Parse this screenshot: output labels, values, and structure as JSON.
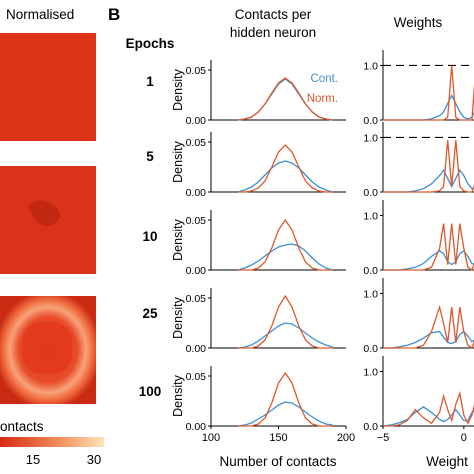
{
  "figure": {
    "panel_b_letter": "B",
    "left_header": "Normalised",
    "epochs_label": "Epochs",
    "mid_title_line1": "Contacts per",
    "mid_title_line2": "hidden neuron",
    "right_title": "Weights",
    "colorbar_label": "ontacts",
    "colorbar_ticks": [
      "15",
      "30"
    ],
    "colors": {
      "cont": "#3a8fd9",
      "norm": "#e0572a",
      "heatmap_low": "#d62a12",
      "heatmap_high": "#ffe3b8"
    }
  },
  "heatmaps": [
    {
      "epoch": "1",
      "description": "uniform"
    },
    {
      "epoch": "5",
      "description": "uniform"
    },
    {
      "epoch": "25",
      "description": "ring"
    }
  ],
  "chart_data": [
    {
      "type": "line",
      "panel": "contacts-per-hidden-neuron",
      "title": "Contacts per hidden neuron",
      "xlabel": "Number of contacts",
      "ylabel": "Density",
      "xlim": [
        100,
        200
      ],
      "xticks": [
        "100",
        "150",
        "200"
      ],
      "ylim": [
        0,
        0.06
      ],
      "yticks": [
        "0.00",
        "0.05"
      ],
      "legend": [
        "Cont.",
        "Norm."
      ],
      "legend_position": "top-right",
      "x": [
        120,
        125,
        130,
        135,
        140,
        145,
        150,
        155,
        160,
        165,
        170,
        175,
        180,
        185,
        190
      ],
      "rows": [
        {
          "epoch": "1",
          "series": [
            {
              "name": "Cont.",
              "values": [
                0.0,
                0.001,
                0.003,
                0.008,
                0.016,
                0.026,
                0.036,
                0.041,
                0.036,
                0.026,
                0.016,
                0.008,
                0.003,
                0.001,
                0.0
              ]
            },
            {
              "name": "Norm.",
              "values": [
                0.0,
                0.001,
                0.003,
                0.008,
                0.016,
                0.027,
                0.037,
                0.042,
                0.037,
                0.027,
                0.016,
                0.008,
                0.003,
                0.001,
                0.0
              ]
            }
          ]
        },
        {
          "epoch": "5",
          "series": [
            {
              "name": "Cont.",
              "values": [
                0.0,
                0.002,
                0.005,
                0.01,
                0.017,
                0.024,
                0.029,
                0.031,
                0.029,
                0.024,
                0.017,
                0.01,
                0.005,
                0.002,
                0.0
              ]
            },
            {
              "name": "Norm.",
              "values": [
                0.0,
                0.0,
                0.001,
                0.004,
                0.011,
                0.025,
                0.04,
                0.047,
                0.04,
                0.025,
                0.011,
                0.004,
                0.001,
                0.0,
                0.0
              ]
            }
          ]
        },
        {
          "epoch": "10",
          "series": [
            {
              "name": "Cont.",
              "values": [
                0.0,
                0.002,
                0.005,
                0.009,
                0.014,
                0.019,
                0.023,
                0.025,
                0.026,
                0.024,
                0.019,
                0.012,
                0.006,
                0.002,
                0.0
              ]
            },
            {
              "name": "Norm.",
              "values": [
                0.0,
                0.0,
                0.0,
                0.002,
                0.008,
                0.022,
                0.04,
                0.05,
                0.04,
                0.022,
                0.008,
                0.002,
                0.0,
                0.0,
                0.0
              ]
            }
          ]
        },
        {
          "epoch": "25",
          "series": [
            {
              "name": "Cont.",
              "values": [
                0.0,
                0.001,
                0.003,
                0.007,
                0.012,
                0.017,
                0.022,
                0.025,
                0.024,
                0.02,
                0.015,
                0.01,
                0.006,
                0.003,
                0.001
              ]
            },
            {
              "name": "Norm.",
              "values": [
                0.0,
                0.0,
                0.0,
                0.002,
                0.008,
                0.022,
                0.041,
                0.052,
                0.041,
                0.022,
                0.008,
                0.002,
                0.0,
                0.0,
                0.0
              ]
            }
          ]
        },
        {
          "epoch": "100",
          "series": [
            {
              "name": "Cont.",
              "values": [
                0.0,
                0.001,
                0.003,
                0.007,
                0.011,
                0.016,
                0.021,
                0.024,
                0.023,
                0.019,
                0.014,
                0.009,
                0.005,
                0.002,
                0.001
              ]
            },
            {
              "name": "Norm.",
              "values": [
                0.0,
                0.0,
                0.0,
                0.002,
                0.008,
                0.023,
                0.043,
                0.053,
                0.043,
                0.023,
                0.008,
                0.002,
                0.0,
                0.0,
                0.0
              ]
            }
          ]
        }
      ]
    },
    {
      "type": "line",
      "panel": "weights",
      "title": "Weights",
      "xlabel": "Weight",
      "xlim": [
        -5,
        1
      ],
      "xticks": [
        "−5",
        "0"
      ],
      "ylim": [
        0,
        1.1
      ],
      "yticks": [
        "0.0",
        "1.0"
      ],
      "x": [
        -5,
        -4.5,
        -4,
        -3.5,
        -3,
        -2.5,
        -2,
        -1.5,
        -1.25,
        -1,
        -0.75,
        -0.5,
        -0.25,
        0,
        0.25,
        0.5,
        0.75,
        1
      ],
      "rows": [
        {
          "epoch": "1",
          "dashed_line_at": 1.0,
          "series": [
            {
              "name": "Cont.",
              "values": [
                0,
                0,
                0,
                0,
                0,
                0,
                0.02,
                0.08,
                0.15,
                0.3,
                0.45,
                0.3,
                0.15,
                0.05,
                0.02,
                0.05,
                0.2,
                0.45
              ]
            },
            {
              "name": "Norm.",
              "values": [
                0,
                0,
                0,
                0,
                0,
                0,
                0,
                0,
                0,
                0.05,
                1.0,
                0.05,
                0,
                0,
                0,
                0,
                1.0,
                0.05
              ]
            }
          ]
        },
        {
          "epoch": "5",
          "dashed_line_at": 1.0,
          "series": [
            {
              "name": "Cont.",
              "values": [
                0,
                0,
                0,
                0,
                0.02,
                0.06,
                0.15,
                0.3,
                0.4,
                0.25,
                0.1,
                0.25,
                0.4,
                0.3,
                0.15,
                0.06,
                0.1,
                0.3
              ]
            },
            {
              "name": "Norm.",
              "values": [
                0,
                0,
                0,
                0,
                0,
                0,
                0,
                0.02,
                0.1,
                0.95,
                0.1,
                0.95,
                0.1,
                0.02,
                0,
                0,
                0.2,
                0.6
              ]
            }
          ]
        },
        {
          "epoch": "10",
          "series": [
            {
              "name": "Cont.",
              "values": [
                0,
                0,
                0,
                0.02,
                0.05,
                0.12,
                0.25,
                0.35,
                0.3,
                0.15,
                0.1,
                0.15,
                0.3,
                0.35,
                0.25,
                0.12,
                0.1,
                0.3
              ]
            },
            {
              "name": "Norm.",
              "values": [
                0,
                0,
                0,
                0,
                0,
                0,
                0.05,
                0.4,
                0.85,
                0.1,
                0.85,
                0.1,
                0.85,
                0.4,
                0.05,
                0,
                0.2,
                0.6
              ]
            }
          ]
        },
        {
          "epoch": "25",
          "series": [
            {
              "name": "Cont.",
              "values": [
                0,
                0,
                0.02,
                0.05,
                0.1,
                0.18,
                0.28,
                0.3,
                0.2,
                0.1,
                0.08,
                0.12,
                0.25,
                0.3,
                0.22,
                0.12,
                0.15,
                0.35
              ]
            },
            {
              "name": "Norm.",
              "values": [
                0,
                0,
                0,
                0,
                0,
                0.05,
                0.3,
                0.75,
                0.45,
                0.1,
                0.75,
                0.1,
                0.75,
                0.3,
                0.05,
                0,
                0.2,
                0.65
              ]
            }
          ]
        },
        {
          "epoch": "100",
          "series": [
            {
              "name": "Cont.",
              "values": [
                0,
                0.02,
                0.06,
                0.12,
                0.25,
                0.35,
                0.25,
                0.12,
                0.08,
                0.12,
                0.2,
                0.3,
                0.2,
                0.1,
                0.1,
                0.25,
                0.3,
                0.2
              ]
            },
            {
              "name": "Norm.",
              "values": [
                0,
                0,
                0.02,
                0.1,
                0.3,
                0.15,
                0.05,
                0.25,
                0.55,
                0.3,
                0.1,
                0.4,
                0.6,
                0.2,
                0.05,
                0.2,
                0.5,
                0.3
              ]
            }
          ]
        }
      ]
    }
  ]
}
